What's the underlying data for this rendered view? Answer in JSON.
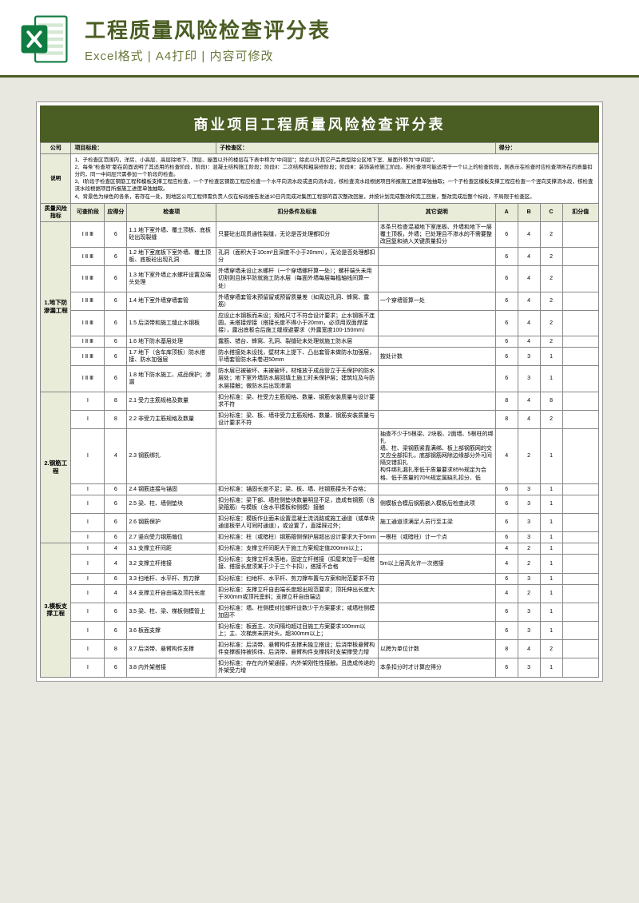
{
  "banner": {
    "title": "工程质量风险检查评分表",
    "subtitle": "Excel格式 | A4打印 | 内容可修改"
  },
  "sheet_title": "商业项目工程质量风险检查评分表",
  "info_row": {
    "company_label": "公司",
    "stage_label": "项目标段：",
    "sub_label": "子检查区：",
    "score_label": "得分："
  },
  "desc_label": "说明",
  "desc_text": "1、子检查区范围内，洋房、小高层、高层除地下、顶层、屋面以外的楼层在下表中称为\"中间层\"；除此以外其它产品类型除公区地下室、屋面外称为\"中间层\"。\n2、每条\"检查项\"都在前面说明了其适用的检查阶段，阶段Ⅰ：混凝土结构施工阶段；阶段Ⅱ：二次结构和粗装修阶段；阶段Ⅲ：装饰装修施工阶段。若检查项可能适用于一个以上的检查阶段，则表示在检查时应检查项所在的质量扣分的，同一中间层只需参加一个阶段的检查。\n3、Ⅰ阶段子检查区钢筋工程和模板支撑工程应检查，一个子检查区钢筋工程应检查一个水平向流水段或竖向流水段，核检查流水段根据项目所报施工进度单独抽取；一个子检查区模板支撑工程应检查一个竖向支撑流水段，核检查流水段根据项目所报施工进度单独抽取。\n4、背景色为绿色的各条，若存在一处，则地区公司工程师需负责人仅在标段报告发送10日内完成对集团工程部的首次整改回复，并按计划完成整改和完工回复，整改完成后整个标段，不局限于检查区。",
  "risk_label": "质量风险指标",
  "cols": {
    "c1": "可查阶段",
    "c2": "应得分",
    "c3": "检查项",
    "c4": "扣分条件及标准",
    "c5": "其它说明",
    "a": "A",
    "b": "B",
    "c": "C",
    "d": "扣分值"
  },
  "groups": [
    {
      "name": "1.地下防渗漏工程",
      "rows": [
        {
          "s": "Ⅰ Ⅱ Ⅲ",
          "p": "6",
          "item": "1.1 地下室外墙、覆土顶板、底板砼出现裂缝",
          "cond": "只要砼出现贯通性裂缝，无论是否处理都扣分",
          "note": "本条只检查混凝地下室底板、外墙和地下一层覆土顶板，外墙；已处理且不渗水的不需要整改回复和纳入关键质量扣分",
          "a": "6",
          "b": "4",
          "c": "2",
          "d": ""
        },
        {
          "s": "Ⅰ Ⅱ Ⅲ",
          "p": "6",
          "item": "1.2 地下室底板下室外墙、覆土顶板、底板砼出现孔洞",
          "cond": "孔洞（面积大于10cm²且深度不小于20mm），无论是否处理都扣分",
          "note": "",
          "a": "6",
          "b": "4",
          "c": "2",
          "d": ""
        },
        {
          "s": "Ⅰ Ⅱ Ⅲ",
          "p": "6",
          "item": "1.3 地下室外墙止水螺杆设置及端头处理",
          "cond": "外墙穿墙未设止水螺杆（一个穿墙螺杆算一处）；螺杆端头未用切割则且抹平防就施工防水层（每面外墙每层每榀轴线间算一处）",
          "note": "",
          "a": "6",
          "b": "4",
          "c": "2",
          "d": ""
        },
        {
          "s": "Ⅰ Ⅱ Ⅲ",
          "p": "6",
          "item": "1.4 地下室外墙穿墙套管",
          "cond": "外墙穿墙套管未预留留或预留质量差（如周边孔洞、蜂窝、露筋）",
          "note": "一个穿墙管算一处",
          "a": "6",
          "b": "4",
          "c": "2",
          "d": ""
        },
        {
          "s": "Ⅰ Ⅱ Ⅲ",
          "p": "6",
          "item": "1.5 后浇带和施工缝止水钢板",
          "cond": "应设止水钢板而未设；规格尺寸不符合设计要求；止水钢板不连圆，未搭接焊接（搭接长度不得小于20mm，必须用双面焊接接），露出底板合后施工缝规避要求（外露宽度100-150mm）",
          "note": "",
          "a": "6",
          "b": "4",
          "c": "2",
          "d": ""
        },
        {
          "s": "Ⅰ Ⅱ Ⅲ",
          "p": "6",
          "item": "1.6 地下防水基层处理",
          "cond": "露筋、错台、蜂窝、孔洞、裂缝砼未处理就施工防水层",
          "note": "",
          "a": "6",
          "b": "4",
          "c": "2",
          "d": ""
        },
        {
          "s": "Ⅰ Ⅱ Ⅲ",
          "p": "6",
          "item": "1.7 地下（含车库顶板）防水搭接、防水加强层",
          "cond": "防水搭接处未设找，壁材末上提下、凸出套管未做防水加强层，平墙套管防水未卷进50mm",
          "note": "按处计数",
          "a": "6",
          "b": "3",
          "c": "1",
          "d": ""
        },
        {
          "s": "Ⅰ Ⅱ Ⅲ",
          "p": "6",
          "item": "1.8 地下防水施工、成品保护；渗漏",
          "cond": "防水层已被破坏、未被破坏，材堆放于成品管立于无保护的防水层处；地下室外墙防水层回填土施工时未保护层；建筑垃及与防水层接触；做防水后出现渗漏",
          "note": "",
          "a": "6",
          "b": "3",
          "c": "1",
          "d": ""
        }
      ]
    },
    {
      "name": "2.钢筋工程",
      "rows": [
        {
          "s": "Ⅰ",
          "p": "8",
          "item": "2.1 受力主筋规格及数量",
          "cond": "扣分标准：梁、柱受力主筋规格、数量、钢筋安装质量与设计要求不符",
          "note": "",
          "a": "8",
          "b": "4",
          "c": "8",
          "d": ""
        },
        {
          "s": "Ⅰ",
          "p": "8",
          "item": "2.2 非受力主筋规格及数量",
          "cond": "扣分标准：梁、板、墙非受力主筋规格、数量、钢筋安装质量与设计要求不符",
          "note": "",
          "a": "8",
          "b": "4",
          "c": "2",
          "d": ""
        },
        {
          "s": "Ⅰ",
          "p": "4",
          "item": "2.3 钢筋绑扎",
          "cond": "",
          "note": "抽查不少于5根梁、2块板、2面墙、5根柱的绑扎\n墙、柱、梁钢筋紧靠满绑、板上部钢筋网的交叉应全部扣扎，底部钢筋网除边缘部分外可间隔交错扣扎\n构件绑扎漏扎率低于质量要求85%规定为合格、低于质量的70%规定属缺扎扣分、低",
          "a": "4",
          "b": "2",
          "c": "1",
          "d": ""
        },
        {
          "s": "Ⅰ",
          "p": "6",
          "item": "2.4 钢筋连接与锚固",
          "cond": "扣分标准：锚固长度不足；梁、板、墙、柱钢筋接头不合格；",
          "note": "",
          "a": "6",
          "b": "3",
          "c": "1",
          "d": ""
        },
        {
          "s": "Ⅰ",
          "p": "6",
          "item": "2.5 梁、柱、墙侧垫块",
          "cond": "扣分标准：梁下部、墙柱侧垫块数量明显不足，造成有钢筋（含梁箍筋）与模板（含水平模板和侧模）接触",
          "note": "侧模板合模后钢筋嵌入模板后检查此项",
          "a": "6",
          "b": "3",
          "c": "1",
          "d": ""
        },
        {
          "s": "Ⅰ",
          "p": "6",
          "item": "2.6 钢筋保护",
          "cond": "扣分标准：模板作业面未设置混凝土流浇路或施工通道（或单块通道板举人可同时通道），或设置了，直接踩过外；",
          "note": "施工通道须满足人员行至主梁",
          "a": "6",
          "b": "3",
          "c": "1",
          "d": ""
        },
        {
          "s": "Ⅰ",
          "p": "6",
          "item": "2.7 竖向受力钢筋偏位",
          "cond": "扣分标准：柱（或暗柱）钢筋箍侧保护层超出设计要求大于5mm",
          "note": "一根柱（或暗柱）计一个点",
          "a": "6",
          "b": "3",
          "c": "1",
          "d": ""
        }
      ]
    },
    {
      "name": "3.模板支撑工程",
      "rows": [
        {
          "s": "Ⅰ",
          "p": "4",
          "item": "3.1 支撑立杆间距",
          "cond": "扣分标准：支撑立杆间距大于施工方案规定值200mm以上；",
          "note": "",
          "a": "4",
          "b": "2",
          "c": "1",
          "d": ""
        },
        {
          "s": "Ⅰ",
          "p": "4",
          "item": "3.2 支撑立杆搭接",
          "cond": "扣分标准：支撑立杆未落地，固定立杆搭接（扣屋来加于一起搭接、搭接长度须某于少于三个卡扣），搭接不合格",
          "note": "5m以上层高允许一次搭接",
          "a": "4",
          "b": "2",
          "c": "1",
          "d": ""
        },
        {
          "s": "Ⅰ",
          "p": "6",
          "item": "3.3 扫地杆、水平杆、剪刀撑",
          "cond": "扣分标准：扫地杆、水平杆、剪刀撑布置与方案和附范要求不符",
          "note": "",
          "a": "6",
          "b": "3",
          "c": "1",
          "d": ""
        },
        {
          "s": "Ⅰ",
          "p": "4",
          "item": "3.4 支撑立杆自由端及顶托长度",
          "cond": "扣分标准：支撑立杆自由端长度超出规范要求；顶托伸出长度大于300mm或顶托歪斜；支撑立杆自由端边",
          "note": "",
          "a": "4",
          "b": "2",
          "c": "1",
          "d": ""
        },
        {
          "s": "Ⅰ",
          "p": "6",
          "item": "3.5 梁、柱、梁、梯板侧模管上",
          "cond": "扣分标准：墙、柱侧模对拉螺杆设数少于方案要求；或墙柱侧模加固不",
          "note": "",
          "a": "6",
          "b": "3",
          "c": "1",
          "d": ""
        },
        {
          "s": "Ⅰ",
          "p": "6",
          "item": "3.6 板面支撑",
          "cond": "扣分标准：板面主、次间隔均超过目施工方案要求100mm以上；主、次梯房未拼对头，超300mm以上；",
          "note": "",
          "a": "6",
          "b": "3",
          "c": "1",
          "d": ""
        },
        {
          "s": "Ⅰ",
          "p": "8",
          "item": "3.7 后浇带、悬臂构件支撑",
          "cond": "扣分标准：后浇带、悬臂构件支撑未独立搭设；后浇带板悬臂构件变撑板持被拆待、后浇带、悬臂构件支撑拆时支架撑受力增",
          "note": "以跨为单位计数",
          "a": "8",
          "b": "4",
          "c": "2",
          "d": ""
        },
        {
          "s": "Ⅰ",
          "p": "6",
          "item": "3.8 内外架搭接",
          "cond": "扣分标准：存在内外架通接，内外架刚性性接触，且造成传递的外架受力增",
          "note": "本条扣分时才计算应得分",
          "a": "6",
          "b": "3",
          "c": "1",
          "d": ""
        }
      ]
    }
  ]
}
